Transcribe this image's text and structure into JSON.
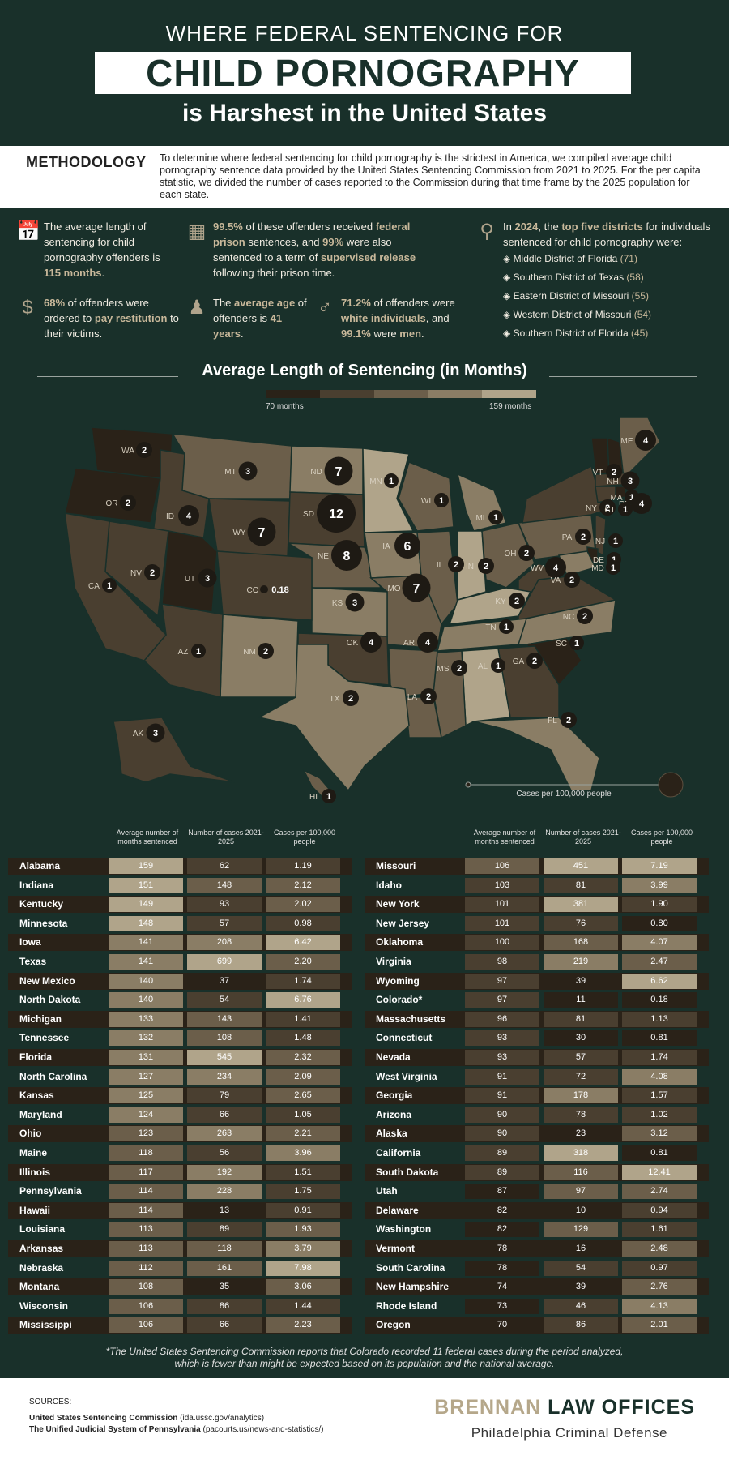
{
  "header": {
    "line1": "WHERE FEDERAL SENTENCING FOR",
    "line2": "CHILD PORNOGRAPHY",
    "line3": "is Harshest in the United States"
  },
  "methodology": {
    "title": "METHODOLOGY",
    "text": "To determine where federal sentencing for child pornography is the strictest in America, we compiled average child pornography sentence data provided by the United States Sentencing Commission from 2021 to 2025. For the per capita statistic, we divided the number of cases reported to the Commission during that time frame by the 2025 population for each state."
  },
  "stats": {
    "avg_length": {
      "pre": "The average length of sentencing for child pornography offenders is ",
      "val": "115 months",
      "post": "."
    },
    "prison": {
      "v1": "99.5%",
      "t1": " of these offenders received ",
      "v2": "federal prison",
      "t2": " sentences, and ",
      "v3": "99%",
      "t3": " were also sentenced to a term of ",
      "v4": "supervised release",
      "t4": " following their prison time."
    },
    "restitution": {
      "v1": "68%",
      "t1": " of offenders were ordered to ",
      "v2": "pay restitution",
      "t2": " to their victims."
    },
    "age": {
      "t1": "The ",
      "v1": "average age",
      "t2": " of offenders is ",
      "v2": "41 years",
      "t3": "."
    },
    "gender": {
      "v1": "71.2%",
      "t1": " of offenders were ",
      "v2": "white individuals",
      "t2": ", and ",
      "v3": "99.1%",
      "t3": " were ",
      "v4": "men",
      "t4": "."
    },
    "districts": {
      "t1": "In ",
      "v1": "2024",
      "t2": ", the ",
      "v2": "top five districts",
      "t3": " for individuals sentenced for child pornography were:",
      "items": [
        {
          "name": "Middle District of Florida",
          "count": "(71)"
        },
        {
          "name": "Southern District of Texas",
          "count": "(58)"
        },
        {
          "name": "Eastern District of Missouri",
          "count": "(55)"
        },
        {
          "name": "Western District of Missouri",
          "count": "(54)"
        },
        {
          "name": "Southern District of Florida",
          "count": "(45)"
        }
      ]
    }
  },
  "map": {
    "title": "Average Length of Sentencing (in Months)",
    "legend_low": "70 months",
    "legend_high": "159 months",
    "bubble_legend": "Cases per 100,000 people",
    "colors": [
      "#2a2218",
      "#4a3f30",
      "#6b5e4a",
      "#8a7d65",
      "#b0a48a"
    ],
    "states": [
      {
        "abbr": "WA",
        "label": "2"
      },
      {
        "abbr": "OR",
        "label": "2"
      },
      {
        "abbr": "ID",
        "label": "4"
      },
      {
        "abbr": "MT",
        "label": "3"
      },
      {
        "abbr": "WY",
        "label": "7"
      },
      {
        "abbr": "ND",
        "label": "7"
      },
      {
        "abbr": "SD",
        "label": "12"
      },
      {
        "abbr": "NE",
        "label": "8"
      },
      {
        "abbr": "MN",
        "label": "1"
      },
      {
        "abbr": "IA",
        "label": "6"
      },
      {
        "abbr": "WI",
        "label": "1"
      },
      {
        "abbr": "MI",
        "label": "1"
      },
      {
        "abbr": "IL",
        "label": "2"
      },
      {
        "abbr": "IN",
        "label": "2"
      },
      {
        "abbr": "OH",
        "label": "2"
      },
      {
        "abbr": "PA",
        "label": "2"
      },
      {
        "abbr": "NY",
        "label": "2"
      },
      {
        "abbr": "VT",
        "label": "2"
      },
      {
        "abbr": "NH",
        "label": "3"
      },
      {
        "abbr": "ME",
        "label": "4"
      },
      {
        "abbr": "MA",
        "label": "1"
      },
      {
        "abbr": "RI",
        "label": "4"
      },
      {
        "abbr": "CT",
        "label": "1"
      },
      {
        "abbr": "NJ",
        "label": "1"
      },
      {
        "abbr": "DE",
        "label": "1"
      },
      {
        "abbr": "MD",
        "label": "1"
      },
      {
        "abbr": "WV",
        "label": "4"
      },
      {
        "abbr": "VA",
        "label": "2"
      },
      {
        "abbr": "KY",
        "label": "2"
      },
      {
        "abbr": "NC",
        "label": "2"
      },
      {
        "abbr": "TN",
        "label": "1"
      },
      {
        "abbr": "SC",
        "label": "1"
      },
      {
        "abbr": "GA",
        "label": "2"
      },
      {
        "abbr": "AL",
        "label": "1"
      },
      {
        "abbr": "MS",
        "label": "2"
      },
      {
        "abbr": "FL",
        "label": "2"
      },
      {
        "abbr": "LA",
        "label": "2"
      },
      {
        "abbr": "AR",
        "label": "4"
      },
      {
        "abbr": "MO",
        "label": "7"
      },
      {
        "abbr": "KS",
        "label": "3"
      },
      {
        "abbr": "OK",
        "label": "4"
      },
      {
        "abbr": "TX",
        "label": "2"
      },
      {
        "abbr": "NM",
        "label": "2"
      },
      {
        "abbr": "CO",
        "label": "0.18"
      },
      {
        "abbr": "UT",
        "label": "3"
      },
      {
        "abbr": "AZ",
        "label": "1"
      },
      {
        "abbr": "NV",
        "label": "2"
      },
      {
        "abbr": "CA",
        "label": "1"
      },
      {
        "abbr": "AK",
        "label": "3"
      },
      {
        "abbr": "HI",
        "label": "1"
      }
    ]
  },
  "table": {
    "headers": [
      "Average number of months sentenced",
      "Number of cases 2021-2025",
      "Cases per 100,000 people"
    ],
    "left": [
      [
        "Alabama",
        "159",
        "62",
        "1.19"
      ],
      [
        "Indiana",
        "151",
        "148",
        "2.12"
      ],
      [
        "Kentucky",
        "149",
        "93",
        "2.02"
      ],
      [
        "Minnesota",
        "148",
        "57",
        "0.98"
      ],
      [
        "Iowa",
        "141",
        "208",
        "6.42"
      ],
      [
        "Texas",
        "141",
        "699",
        "2.20"
      ],
      [
        "New Mexico",
        "140",
        "37",
        "1.74"
      ],
      [
        "North Dakota",
        "140",
        "54",
        "6.76"
      ],
      [
        "Michigan",
        "133",
        "143",
        "1.41"
      ],
      [
        "Tennessee",
        "132",
        "108",
        "1.48"
      ],
      [
        "Florida",
        "131",
        "545",
        "2.32"
      ],
      [
        "North Carolina",
        "127",
        "234",
        "2.09"
      ],
      [
        "Kansas",
        "125",
        "79",
        "2.65"
      ],
      [
        "Maryland",
        "124",
        "66",
        "1.05"
      ],
      [
        "Ohio",
        "123",
        "263",
        "2.21"
      ],
      [
        "Maine",
        "118",
        "56",
        "3.96"
      ],
      [
        "Illinois",
        "117",
        "192",
        "1.51"
      ],
      [
        "Pennsylvania",
        "114",
        "228",
        "1.75"
      ],
      [
        "Hawaii",
        "114",
        "13",
        "0.91"
      ],
      [
        "Louisiana",
        "113",
        "89",
        "1.93"
      ],
      [
        "Arkansas",
        "113",
        "118",
        "3.79"
      ],
      [
        "Nebraska",
        "112",
        "161",
        "7.98"
      ],
      [
        "Montana",
        "108",
        "35",
        "3.06"
      ],
      [
        "Wisconsin",
        "106",
        "86",
        "1.44"
      ],
      [
        "Mississippi",
        "106",
        "66",
        "2.23"
      ]
    ],
    "right": [
      [
        "Missouri",
        "106",
        "451",
        "7.19"
      ],
      [
        "Idaho",
        "103",
        "81",
        "3.99"
      ],
      [
        "New York",
        "101",
        "381",
        "1.90"
      ],
      [
        "New Jersey",
        "101",
        "76",
        "0.80"
      ],
      [
        "Oklahoma",
        "100",
        "168",
        "4.07"
      ],
      [
        "Virginia",
        "98",
        "219",
        "2.47"
      ],
      [
        "Wyoming",
        "97",
        "39",
        "6.62"
      ],
      [
        "Colorado*",
        "97",
        "11",
        "0.18"
      ],
      [
        "Massachusetts",
        "96",
        "81",
        "1.13"
      ],
      [
        "Connecticut",
        "93",
        "30",
        "0.81"
      ],
      [
        "Nevada",
        "93",
        "57",
        "1.74"
      ],
      [
        "West Virginia",
        "91",
        "72",
        "4.08"
      ],
      [
        "Georgia",
        "91",
        "178",
        "1.57"
      ],
      [
        "Arizona",
        "90",
        "78",
        "1.02"
      ],
      [
        "Alaska",
        "90",
        "23",
        "3.12"
      ],
      [
        "California",
        "89",
        "318",
        "0.81"
      ],
      [
        "South Dakota",
        "89",
        "116",
        "12.41"
      ],
      [
        "Utah",
        "87",
        "97",
        "2.74"
      ],
      [
        "Delaware",
        "82",
        "10",
        "0.94"
      ],
      [
        "Washington",
        "82",
        "129",
        "1.61"
      ],
      [
        "Vermont",
        "78",
        "16",
        "2.48"
      ],
      [
        "South Carolina",
        "78",
        "54",
        "0.97"
      ],
      [
        "New Hampshire",
        "74",
        "39",
        "2.76"
      ],
      [
        "Rhode Island",
        "73",
        "46",
        "4.13"
      ],
      [
        "Oregon",
        "70",
        "86",
        "2.01"
      ]
    ]
  },
  "footnote": {
    "line1": "*The United States Sentencing Commission reports that Colorado recorded 11 federal cases during the period analyzed,",
    "line2": "which is fewer than might be expected based on its population and the national average."
  },
  "sources": {
    "title": "SOURCES:",
    "s1_name": "United States Sentencing Commission",
    "s1_url": "(ida.ussc.gov/analytics)",
    "s2_name": "The Unified Judicial System of Pennsylvania",
    "s2_url": "(pacourts.us/news-and-statistics/)"
  },
  "brand": {
    "name1": "BRENNAN",
    "name2": "LAW OFFICES",
    "sub": "Philadelphia Criminal Defense"
  }
}
